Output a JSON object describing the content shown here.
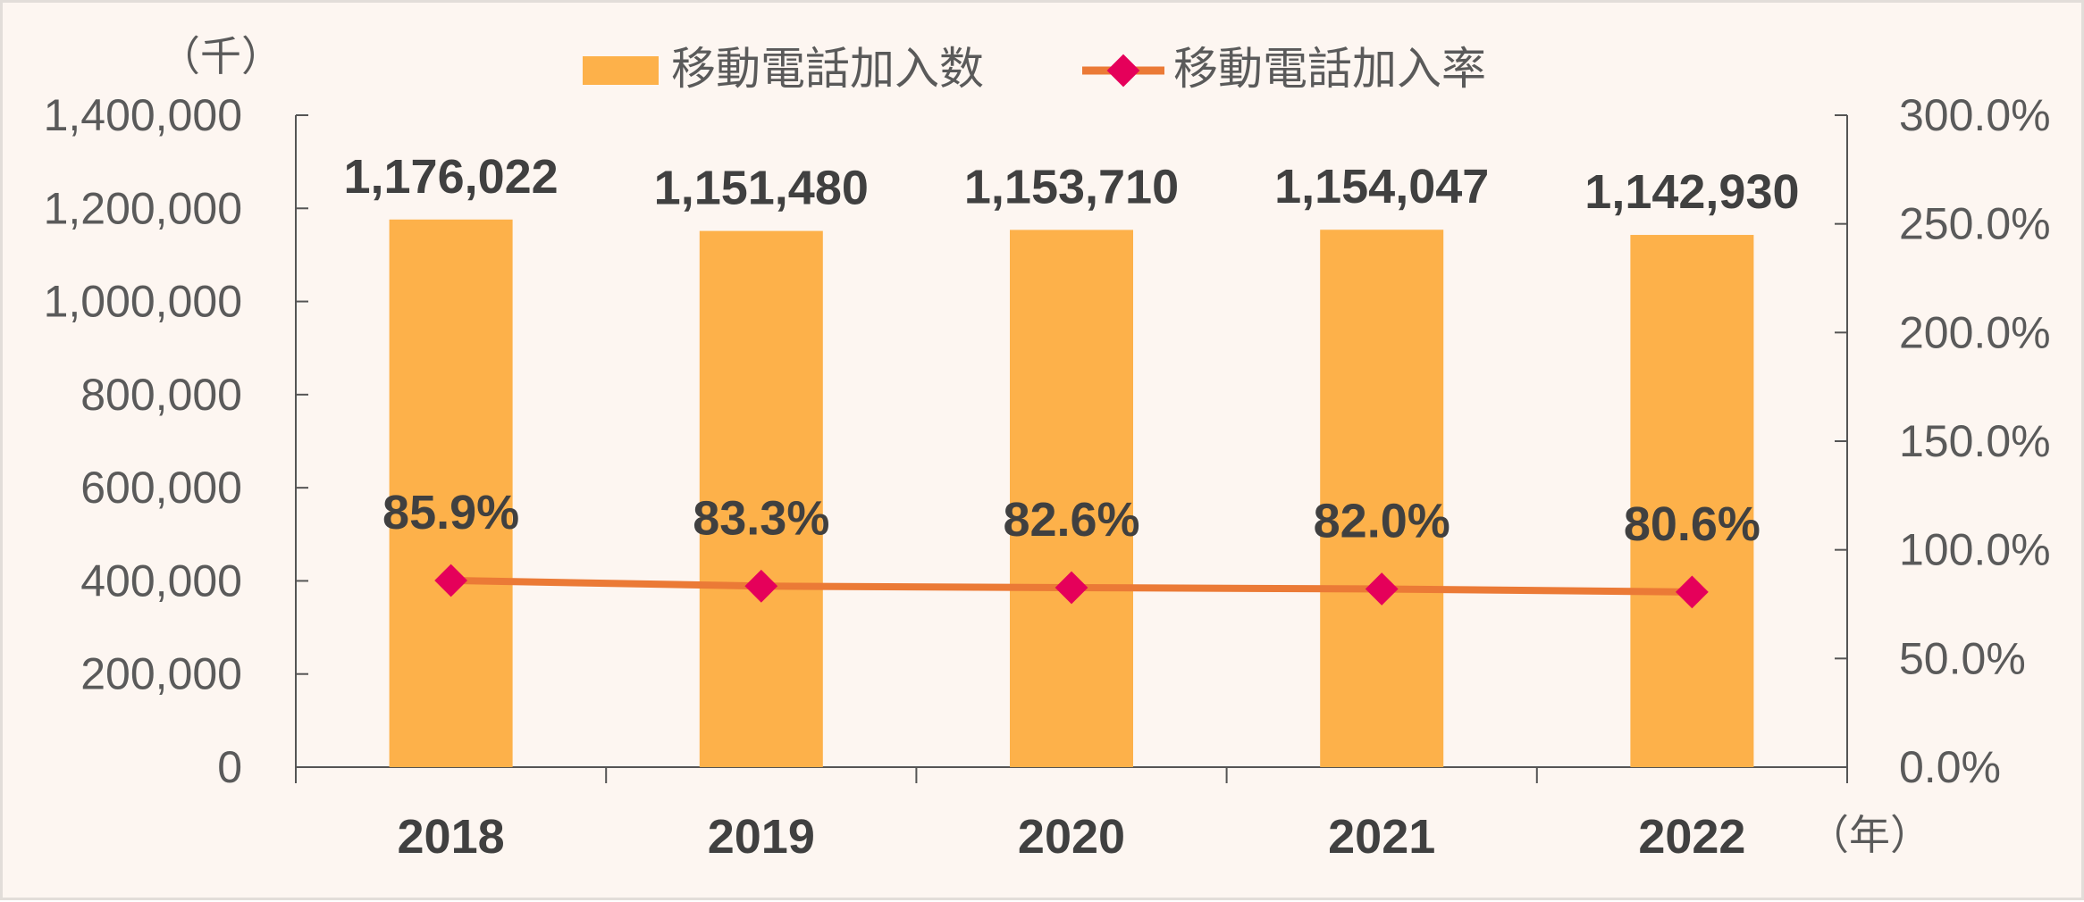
{
  "chart_data": {
    "type": "bar",
    "categories": [
      "2018",
      "2019",
      "2020",
      "2021",
      "2022"
    ],
    "series": [
      {
        "name": "移動電話加入数",
        "type": "bar",
        "axis": "left",
        "values": [
          1176022,
          1151480,
          1153710,
          1154047,
          1142930
        ],
        "labels": [
          "1,176,022",
          "1,151,480",
          "1,153,710",
          "1,154,047",
          "1,142,930"
        ]
      },
      {
        "name": "移動電話加入率",
        "type": "line",
        "axis": "right",
        "values": [
          85.9,
          83.3,
          82.6,
          82.0,
          80.6
        ],
        "labels": [
          "85.9%",
          "83.3%",
          "82.6%",
          "82.0%",
          "80.6%"
        ]
      }
    ],
    "ylim": [
      0,
      1400000
    ],
    "y2lim": [
      0,
      300
    ],
    "yticks": [
      "0",
      "200,000",
      "400,000",
      "600,000",
      "800,000",
      "1,000,000",
      "1,200,000",
      "1,400,000"
    ],
    "y2ticks": [
      "0.0%",
      "50.0%",
      "100.0%",
      "150.0%",
      "200.0%",
      "250.0%",
      "300.0%"
    ],
    "ylabel": "（千）",
    "xlabel": "（年）",
    "legend_position": "top-center",
    "grid": false,
    "colors": {
      "background": "#fdf6f1",
      "bar": "#fdb14a",
      "line": "#eb7a36",
      "marker": "#e5005a",
      "axis": "#555555",
      "tick_text": "#5a5a5a",
      "label_text": "#404040"
    }
  }
}
